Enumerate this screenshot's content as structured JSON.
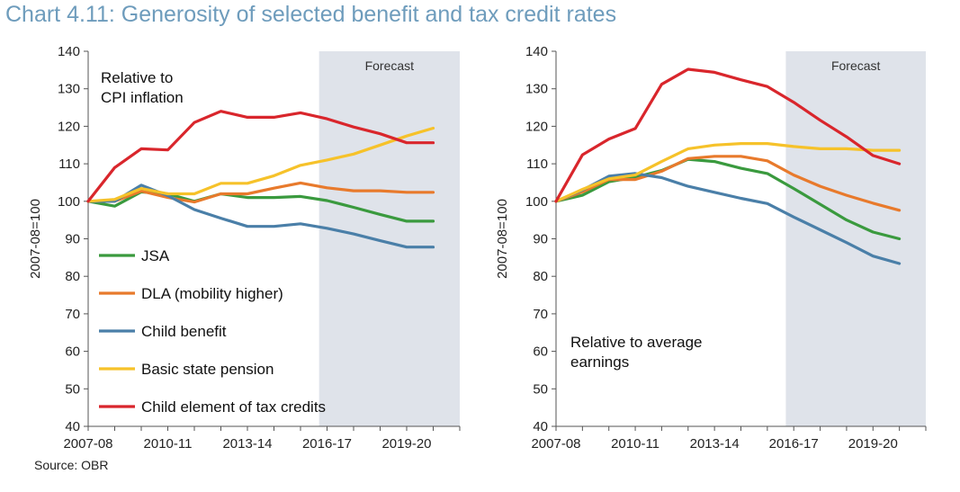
{
  "title": "Chart 4.11: Generosity of selected benefit and tax credit rates",
  "source": "Source: OBR",
  "chart_data": [
    {
      "type": "line",
      "annotation": "Relative to CPI inflation",
      "annotation_lines": [
        "Relative to",
        "CPI inflation"
      ],
      "forecast_label": "Forecast",
      "forecast_start": 2015.7,
      "ylabel": "2007-08=100",
      "xlabel": "",
      "xlim": [
        2007,
        2021
      ],
      "ylim": [
        40,
        140
      ],
      "yticks": [
        40,
        50,
        60,
        70,
        80,
        90,
        100,
        110,
        120,
        130,
        140
      ],
      "xticks": [
        {
          "x": 2007,
          "label": "2007-08"
        },
        {
          "x": 2010,
          "label": "2010-11"
        },
        {
          "x": 2013,
          "label": "2013-14"
        },
        {
          "x": 2016,
          "label": "2016-17"
        },
        {
          "x": 2019,
          "label": "2019-20"
        }
      ],
      "x": [
        2007,
        2008,
        2009,
        2010,
        2011,
        2012,
        2013,
        2014,
        2015,
        2016,
        2017,
        2018,
        2019,
        2020
      ],
      "legend": "inside-lower-left",
      "series": [
        {
          "name": "JSA",
          "color": "#3a9a3e",
          "values": [
            100,
            98.7,
            102.5,
            102,
            100,
            102,
            101,
            101,
            101.3,
            100.2,
            98.4,
            96.5,
            94.7,
            94.7
          ]
        },
        {
          "name": "DLA (mobility higher)",
          "color": "#e87a2c",
          "values": [
            100,
            100,
            102.7,
            101,
            99.8,
            102,
            102,
            103.5,
            104.9,
            103.6,
            102.8,
            102.8,
            102.4,
            102.4
          ]
        },
        {
          "name": "Child benefit",
          "color": "#4a7fa8",
          "values": [
            100,
            100,
            104.3,
            101.5,
            97.8,
            95.5,
            93.3,
            93.3,
            94,
            92.8,
            91.3,
            89.5,
            87.8,
            87.8
          ]
        },
        {
          "name": "Basic state pension",
          "color": "#f6c22a",
          "values": [
            100,
            100.5,
            103.4,
            102,
            102,
            104.8,
            104.8,
            106.8,
            109.6,
            111,
            112.6,
            115,
            117.4,
            119.5
          ]
        },
        {
          "name": "Child element of tax credits",
          "color": "#d9262c",
          "values": [
            100,
            109,
            114,
            113.7,
            121,
            124,
            122.4,
            122.4,
            123.6,
            122,
            119.8,
            118,
            115.6,
            115.6
          ]
        }
      ]
    },
    {
      "type": "line",
      "annotation": "Relative to average earnings",
      "annotation_lines": [
        "Relative to average",
        "earnings"
      ],
      "forecast_label": "Forecast",
      "forecast_start": 2015.7,
      "ylabel": "2007-08=100",
      "xlabel": "",
      "xlim": [
        2007,
        2021
      ],
      "ylim": [
        40,
        140
      ],
      "yticks": [
        40,
        50,
        60,
        70,
        80,
        90,
        100,
        110,
        120,
        130,
        140
      ],
      "xticks": [
        {
          "x": 2007,
          "label": "2007-08"
        },
        {
          "x": 2010,
          "label": "2010-11"
        },
        {
          "x": 2013,
          "label": "2013-14"
        },
        {
          "x": 2016,
          "label": "2016-17"
        },
        {
          "x": 2019,
          "label": "2019-20"
        }
      ],
      "x": [
        2007,
        2008,
        2009,
        2010,
        2011,
        2012,
        2013,
        2014,
        2015,
        2016,
        2017,
        2018,
        2019,
        2020
      ],
      "series": [
        {
          "name": "JSA",
          "color": "#3a9a3e",
          "values": [
            100,
            101.6,
            105.2,
            106.4,
            108.2,
            111.2,
            110.6,
            108.8,
            107.4,
            103.4,
            99.2,
            95,
            91.8,
            90
          ]
        },
        {
          "name": "DLA (mobility higher)",
          "color": "#e87a2c",
          "values": [
            100,
            102.5,
            105.8,
            105.8,
            108,
            111.4,
            112,
            112,
            110.8,
            107,
            104,
            101.6,
            99.5,
            97.6
          ]
        },
        {
          "name": "Child benefit",
          "color": "#4a7fa8",
          "values": [
            100,
            103,
            106.7,
            107.4,
            106.3,
            104,
            102.4,
            100.8,
            99.4,
            95.8,
            92.4,
            89,
            85.4,
            83.4
          ]
        },
        {
          "name": "Basic state pension",
          "color": "#f6c22a",
          "values": [
            100,
            103.2,
            106,
            107,
            110.6,
            114,
            115,
            115.4,
            115.4,
            114.6,
            114,
            114,
            113.6,
            113.6
          ]
        },
        {
          "name": "Child element of tax credits",
          "color": "#d9262c",
          "values": [
            100,
            112.4,
            116.6,
            119.4,
            131.2,
            135.2,
            134.4,
            132.4,
            130.6,
            126.4,
            121.6,
            117.2,
            112.2,
            110
          ]
        }
      ]
    }
  ]
}
